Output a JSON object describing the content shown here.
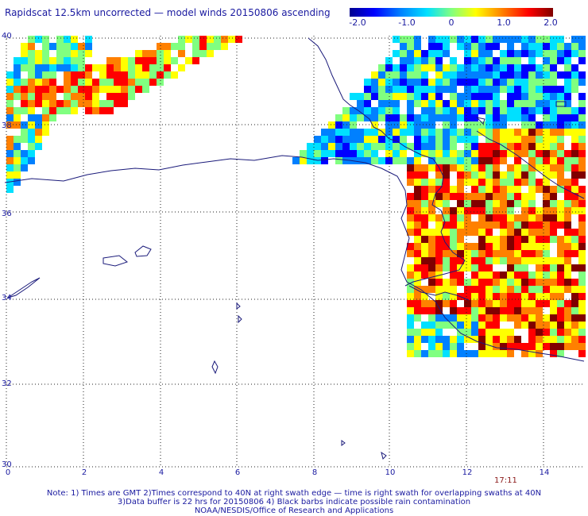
{
  "title": "Rapidscat 12.5km uncorrected — model winds 20150806 ascending",
  "colorbar": {
    "labels": [
      "-2.0",
      "-1.0",
      "0",
      "1.0",
      "2.0"
    ],
    "colors": [
      "#00008f",
      "#0000ff",
      "#0080ff",
      "#00e0ff",
      "#80ff80",
      "#ffff00",
      "#ff8000",
      "#ff0000",
      "#800000"
    ]
  },
  "axes": {
    "lat_labels": [
      "40",
      "38",
      "36",
      "34",
      "32",
      "30"
    ],
    "lon_labels": [
      "0",
      "2",
      "4",
      "6",
      "8",
      "10",
      "12",
      "14"
    ]
  },
  "time_label": "17:11",
  "notes": {
    "line1": "Note: 1) Times are GMT 2)Times correspond to 40N at right swath edge — time is right swath for overlapping swaths at 40N",
    "line2": "3)Data buffer is 22 hrs for 20150806 4) Black barbs indicate possible rain contamination",
    "line3": "NOAA/NESDIS/Office of Research and Applications"
  },
  "colors": {
    "coastline": "#1a1a7a",
    "text": "#1a1aa0",
    "time": "#8b1a1a"
  }
}
